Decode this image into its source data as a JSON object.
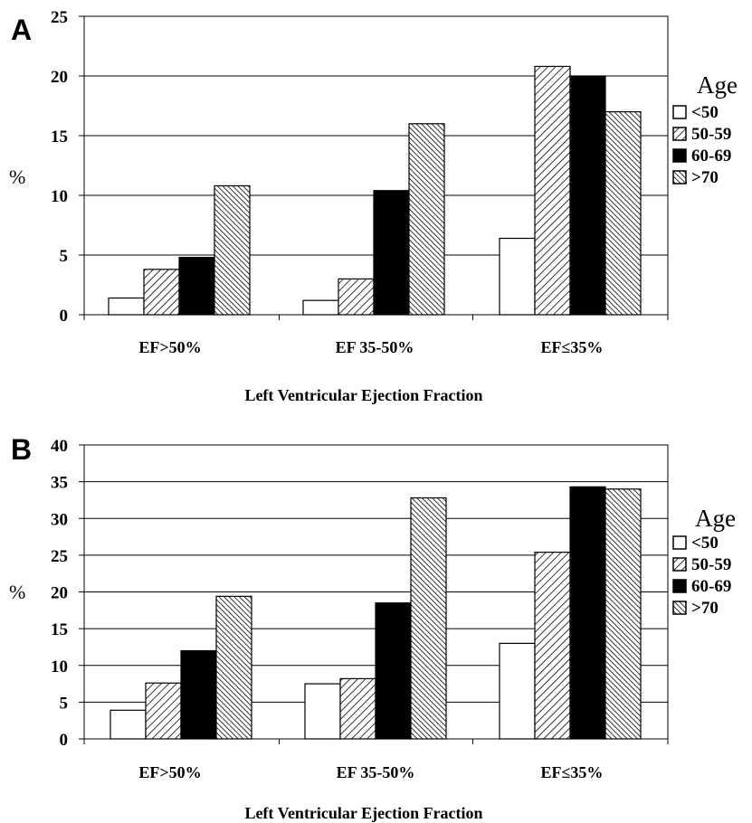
{
  "chart_data": [
    {
      "type": "bar",
      "panel_label": "A",
      "categories": [
        "EF>50%",
        "EF 35-50%",
        "EF≤35%"
      ],
      "series": [
        {
          "name": "<50",
          "values": [
            1.4,
            1.2,
            6.4
          ]
        },
        {
          "name": "50-59",
          "values": [
            3.8,
            3.0,
            20.8
          ]
        },
        {
          "name": "60-69",
          "values": [
            4.8,
            10.4,
            20.0
          ]
        },
        {
          "name": ">70",
          "values": [
            10.8,
            16.0,
            17.0
          ]
        }
      ],
      "ylabel": "%",
      "xlabel": "Left Ventricular Ejection Fraction",
      "ylim": [
        0,
        25
      ],
      "yticks": [
        0,
        5,
        10,
        15,
        20,
        25
      ],
      "legend_title": "Age",
      "legend_placement": "right",
      "grid": true
    },
    {
      "type": "bar",
      "panel_label": "B",
      "categories": [
        "EF>50%",
        "EF 35-50%",
        "EF≤35%"
      ],
      "series": [
        {
          "name": "<50",
          "values": [
            3.9,
            7.5,
            13.0
          ]
        },
        {
          "name": "50-59",
          "values": [
            7.6,
            8.2,
            25.4
          ]
        },
        {
          "name": "60-69",
          "values": [
            12.0,
            18.5,
            34.3
          ]
        },
        {
          "name": ">70",
          "values": [
            19.4,
            32.8,
            34.0
          ]
        }
      ],
      "ylabel": "%",
      "xlabel": "Left Ventricular Ejection Fraction",
      "ylim": [
        0,
        40
      ],
      "yticks": [
        0,
        5,
        10,
        15,
        20,
        25,
        30,
        35,
        40
      ],
      "legend_title": "Age",
      "legend_placement": "right",
      "grid": true
    }
  ],
  "series_fills": [
    "white",
    "hatch-diag-fine",
    "black",
    "hatch-diag-dense"
  ]
}
